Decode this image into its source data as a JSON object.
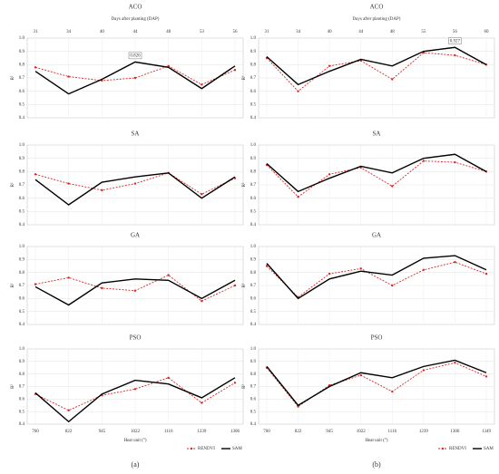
{
  "chart_data": [
    {
      "type": "line",
      "title": "ACO",
      "top_axis_label": "Days after planting (DAP)",
      "top_categories": [
        31,
        34,
        40,
        44,
        48,
        53,
        56
      ],
      "ylabel": "R²",
      "categories": [
        null,
        null,
        null,
        null,
        null,
        null,
        null
      ],
      "annotation": "0.826",
      "series": [
        {
          "color": "#d62728",
          "values": [
            0.78,
            0.71,
            0.68,
            0.7,
            0.79,
            0.65,
            0.76
          ]
        },
        {
          "color": "#000000",
          "values": [
            0.75,
            0.58,
            0.69,
            0.82,
            0.78,
            0.62,
            0.79
          ]
        }
      ],
      "ylim": [
        0.4,
        1
      ],
      "yticks": [
        0.4,
        0.5,
        0.6,
        0.7,
        0.8,
        0.9,
        {
          "value": 1,
          "label": "1.0"
        }
      ],
      "grid": true
    },
    {
      "type": "line",
      "title": "SA",
      "ylabel": "R²",
      "categories": [
        null,
        null,
        null,
        null,
        null,
        null,
        null
      ],
      "series": [
        {
          "color": "#d62728",
          "values": [
            0.78,
            0.71,
            0.66,
            0.71,
            0.79,
            0.63,
            0.75
          ]
        },
        {
          "color": "#000000",
          "values": [
            0.74,
            0.55,
            0.72,
            0.76,
            0.79,
            0.6,
            0.76
          ]
        }
      ],
      "ylim": [
        0.4,
        1
      ],
      "yticks": [
        0.4,
        0.5,
        0.6,
        0.7,
        0.8,
        0.9,
        {
          "value": 1,
          "label": "1.0"
        }
      ],
      "grid": true
    },
    {
      "type": "line",
      "title": "GA",
      "ylabel": "R²",
      "categories": [
        null,
        null,
        null,
        null,
        null,
        null,
        null
      ],
      "series": [
        {
          "color": "#d62728",
          "values": [
            0.71,
            0.76,
            0.68,
            0.66,
            0.78,
            0.58,
            0.7
          ]
        },
        {
          "color": "#000000",
          "values": [
            0.69,
            0.55,
            0.72,
            0.75,
            0.74,
            0.6,
            0.74
          ]
        }
      ],
      "ylim": [
        0.4,
        1
      ],
      "yticks": [
        0.4,
        0.5,
        0.6,
        0.7,
        0.8,
        0.9,
        {
          "value": 1,
          "label": "1.0"
        }
      ],
      "grid": true
    },
    {
      "type": "line",
      "title": "PSO",
      "ylabel": "R²",
      "xlabel": "Heat unit (°)",
      "caption": "(a)",
      "categories": [
        "760",
        "822",
        "945",
        "1022",
        "1116",
        "1239",
        "1306"
      ],
      "series": [
        {
          "name": "RENDVI",
          "color": "#d62728",
          "values": [
            0.64,
            0.51,
            0.63,
            0.68,
            0.77,
            0.57,
            0.73
          ]
        },
        {
          "name": "SAM",
          "color": "#000000",
          "values": [
            0.65,
            0.42,
            0.64,
            0.75,
            0.72,
            0.61,
            0.77
          ]
        }
      ],
      "ylim": [
        0.4,
        1
      ],
      "yticks": [
        0.4,
        0.5,
        0.6,
        0.7,
        0.8,
        0.9,
        {
          "value": 1,
          "label": "1.0"
        }
      ],
      "grid": true
    },
    {
      "type": "line",
      "title": "ACO",
      "top_axis_label": "Days after planting (DAP)",
      "top_categories": [
        31,
        34,
        40,
        44,
        48,
        55,
        56,
        60
      ],
      "ylabel": "R²",
      "categories": [
        null,
        null,
        null,
        null,
        null,
        null,
        null,
        null
      ],
      "annotation": "0.927",
      "series": [
        {
          "color": "#d62728",
          "values": [
            0.85,
            0.6,
            0.79,
            0.83,
            0.69,
            0.89,
            0.87,
            0.8
          ]
        },
        {
          "color": "#000000",
          "values": [
            0.86,
            0.65,
            0.75,
            0.84,
            0.79,
            0.9,
            0.93,
            0.8
          ]
        }
      ],
      "ylim": [
        0.4,
        1
      ],
      "yticks": [
        0.4,
        0.5,
        0.6,
        0.7,
        0.8,
        0.9,
        {
          "value": 1,
          "label": "1.0"
        }
      ],
      "grid": true
    },
    {
      "type": "line",
      "title": "SA",
      "ylabel": "R²",
      "categories": [
        null,
        null,
        null,
        null,
        null,
        null,
        null,
        null
      ],
      "series": [
        {
          "color": "#d62728",
          "values": [
            0.85,
            0.61,
            0.78,
            0.83,
            0.69,
            0.88,
            0.87,
            0.8
          ]
        },
        {
          "color": "#000000",
          "values": [
            0.86,
            0.65,
            0.75,
            0.84,
            0.79,
            0.9,
            0.93,
            0.8
          ]
        }
      ],
      "ylim": [
        0.4,
        1
      ],
      "yticks": [
        0.4,
        0.5,
        0.6,
        0.7,
        0.8,
        0.9,
        {
          "value": 1,
          "label": "1.0"
        }
      ],
      "grid": true
    },
    {
      "type": "line",
      "title": "GA",
      "ylabel": "R²",
      "categories": [
        null,
        null,
        null,
        null,
        null,
        null,
        null,
        null
      ],
      "series": [
        {
          "color": "#d62728",
          "values": [
            0.85,
            0.61,
            0.79,
            0.83,
            0.7,
            0.82,
            0.88,
            0.79
          ]
        },
        {
          "color": "#000000",
          "values": [
            0.87,
            0.6,
            0.75,
            0.81,
            0.78,
            0.91,
            0.93,
            0.82
          ]
        }
      ],
      "ylim": [
        0.4,
        1
      ],
      "yticks": [
        0.4,
        0.5,
        0.6,
        0.7,
        0.8,
        0.9,
        {
          "value": 1,
          "label": "1.0"
        }
      ],
      "grid": true
    },
    {
      "type": "line",
      "title": "PSO",
      "ylabel": "R²",
      "xlabel": "Heat unit (°)",
      "caption": "(b)",
      "categories": [
        "760",
        "822",
        "945",
        "1022",
        "1116",
        "1239",
        "1306",
        "1349"
      ],
      "series": [
        {
          "name": "RENDVI",
          "color": "#d62728",
          "values": [
            0.85,
            0.54,
            0.71,
            0.79,
            0.66,
            0.83,
            0.89,
            0.78
          ]
        },
        {
          "name": "SAM",
          "color": "#000000",
          "values": [
            0.86,
            0.55,
            0.7,
            0.81,
            0.77,
            0.86,
            0.91,
            0.81
          ]
        }
      ],
      "ylim": [
        0.4,
        1
      ],
      "yticks": [
        0.4,
        0.5,
        0.6,
        0.7,
        0.8,
        0.9,
        {
          "value": 1,
          "label": "1.0"
        }
      ],
      "grid": true
    }
  ]
}
